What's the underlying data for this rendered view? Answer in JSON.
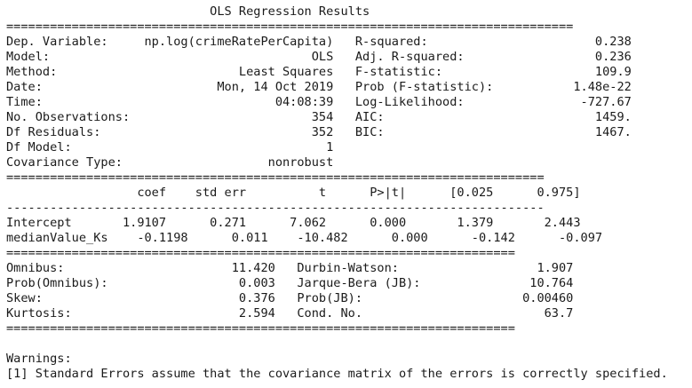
{
  "lines": [
    "                            OLS Regression Results                            ",
    "==============================================================================",
    "Dep. Variable:     np.log(crimeRatePerCapita)   R-squared:                       0.238",
    "Model:                                    OLS   Adj. R-squared:                  0.236",
    "Method:                         Least Squares   F-statistic:                     109.9",
    "Date:                        Mon, 14 Oct 2019   Prob (F-statistic):           1.48e-22",
    "Time:                                04:08:39   Log-Likelihood:                -727.67",
    "No. Observations:                         354   AIC:                             1459.",
    "Df Residuals:                             352   BIC:                             1467.",
    "Df Model:                                   1                                         ",
    "Covariance Type:                    nonrobust                                         ",
    "==========================================================================",
    "                  coef    std err          t      P>|t|      [0.025      0.975]",
    "--------------------------------------------------------------------------",
    "Intercept       1.9107      0.271      7.062      0.000       1.379       2.443",
    "medianValue_Ks    -0.1198      0.011    -10.482      0.000      -0.142      -0.097",
    "======================================================================",
    "Omnibus:                       11.420   Durbin-Watson:                   1.907",
    "Prob(Omnibus):                  0.003   Jarque-Bera (JB):               10.764",
    "Skew:                           0.376   Prob(JB):                      0.00460",
    "Kurtosis:                       2.594   Cond. No.                         63.7",
    "======================================================================",
    "",
    "Warnings:",
    "[1] Standard Errors assume that the covariance matrix of the errors is correctly specified."
  ]
}
